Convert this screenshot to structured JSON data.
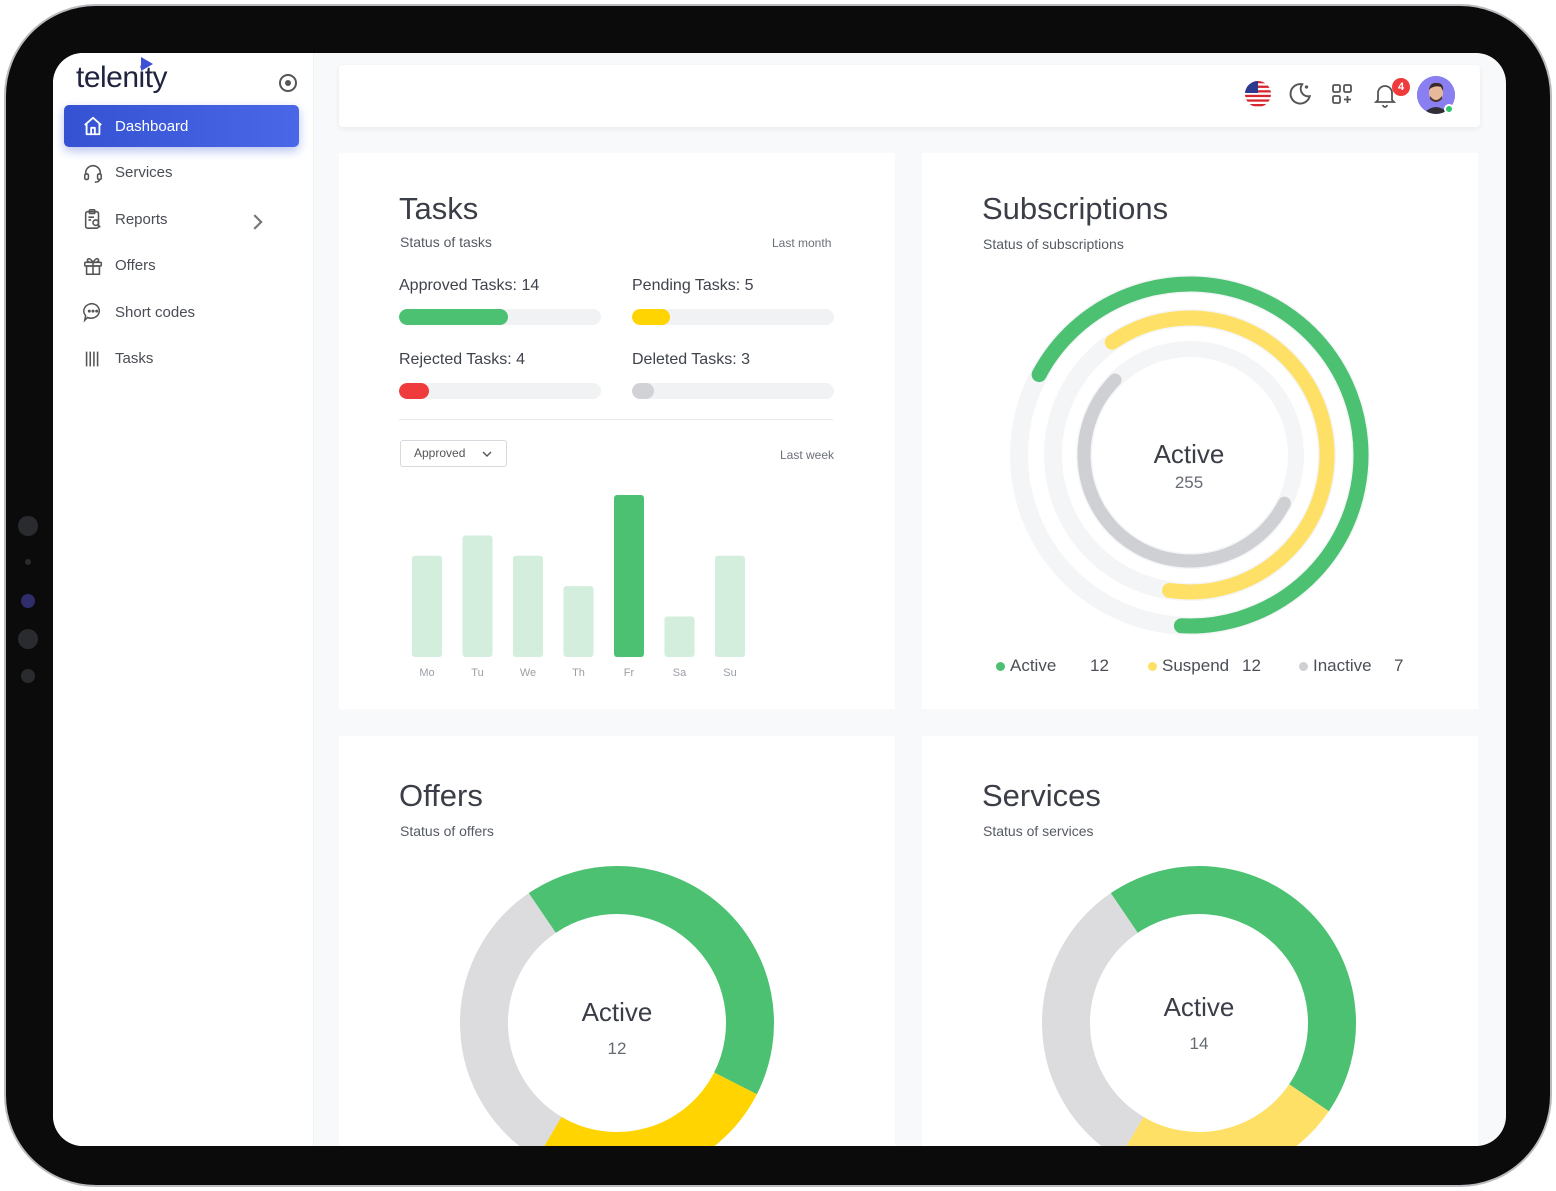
{
  "brand": {
    "logo": "telenity"
  },
  "sidebar": {
    "items": [
      {
        "label": "Dashboard",
        "icon": "home-icon",
        "active": true
      },
      {
        "label": "Services",
        "icon": "headset-icon"
      },
      {
        "label": "Reports",
        "icon": "clipboard-search-icon",
        "has_children": true
      },
      {
        "label": "Offers",
        "icon": "gift-icon"
      },
      {
        "label": "Short codes",
        "icon": "chat-bubble-icon"
      },
      {
        "label": "Tasks",
        "icon": "bars-icon"
      }
    ]
  },
  "topbar": {
    "icons": [
      "us-flag-icon",
      "moon-icon",
      "apps-grid-icon",
      "bell-icon",
      "avatar"
    ],
    "notification_count": "4"
  },
  "tasks": {
    "title": "Tasks",
    "subtitle": "Status of tasks",
    "period": "Last month",
    "items": [
      {
        "label": "Approved Tasks: 14",
        "value": 14,
        "fraction": 0.54,
        "color": "#4cc172"
      },
      {
        "label": "Pending Tasks: 5",
        "value": 5,
        "fraction": 0.19,
        "color": "#ffd400"
      },
      {
        "label": "Rejected Tasks: 4",
        "value": 4,
        "fraction": 0.15,
        "color": "#ef3b3b"
      },
      {
        "label": "Deleted Tasks: 3",
        "value": 3,
        "fraction": 0.11,
        "color": "#d1d2d5"
      }
    ],
    "filter": {
      "selected": "Approved"
    },
    "chart_period": "Last week"
  },
  "chart_data": [
    {
      "type": "bar",
      "categories": [
        "Mo",
        "Tu",
        "We",
        "Th",
        "Fr",
        "Sa",
        "Su"
      ],
      "values": [
        100,
        120,
        100,
        70,
        160,
        40,
        100
      ],
      "highlight": "Fr",
      "colors": {
        "base": "#d3eedc",
        "highlight": "#4cc172"
      },
      "ylim": [
        0,
        160
      ]
    },
    {
      "type": "pie",
      "variant": "concentric-rings",
      "title": "Subscriptions",
      "series": [
        {
          "name": "Active",
          "value": 12,
          "color": "#4cc172",
          "arc_fraction": 0.68
        },
        {
          "name": "Suspend",
          "value": 12,
          "color": "#ffe066",
          "arc_fraction": 0.62
        },
        {
          "name": "Inactive",
          "value": 7,
          "color": "#cfd0d4",
          "arc_fraction": 0.55
        }
      ]
    },
    {
      "type": "pie",
      "variant": "donut",
      "title": "Offers",
      "series": [
        {
          "value": 0.42,
          "color": "#4cc172"
        },
        {
          "value": 0.26,
          "color": "#ffd400"
        },
        {
          "value": 0.32,
          "color": "#dcdcde"
        }
      ]
    },
    {
      "type": "pie",
      "variant": "donut",
      "title": "Services",
      "series": [
        {
          "value": 0.44,
          "color": "#4cc172"
        },
        {
          "value": 0.24,
          "color": "#ffe066"
        },
        {
          "value": 0.32,
          "color": "#dcdcde"
        }
      ]
    }
  ],
  "subscriptions": {
    "title": "Subscriptions",
    "subtitle": "Status of subscriptions",
    "center_label": "Active",
    "center_value": "255",
    "legend": [
      {
        "name": "Active",
        "value": "12",
        "color": "#4cc172"
      },
      {
        "name": "Suspend",
        "value": "12",
        "color": "#ffe066"
      },
      {
        "name": "Inactive",
        "value": "7",
        "color": "#cfd0d4"
      }
    ]
  },
  "offers": {
    "title": "Offers",
    "subtitle": "Status of offers",
    "center_label": "Active",
    "center_value": "12"
  },
  "services": {
    "title": "Services",
    "subtitle": "Status of services",
    "center_label": "Active",
    "center_value": "14"
  }
}
